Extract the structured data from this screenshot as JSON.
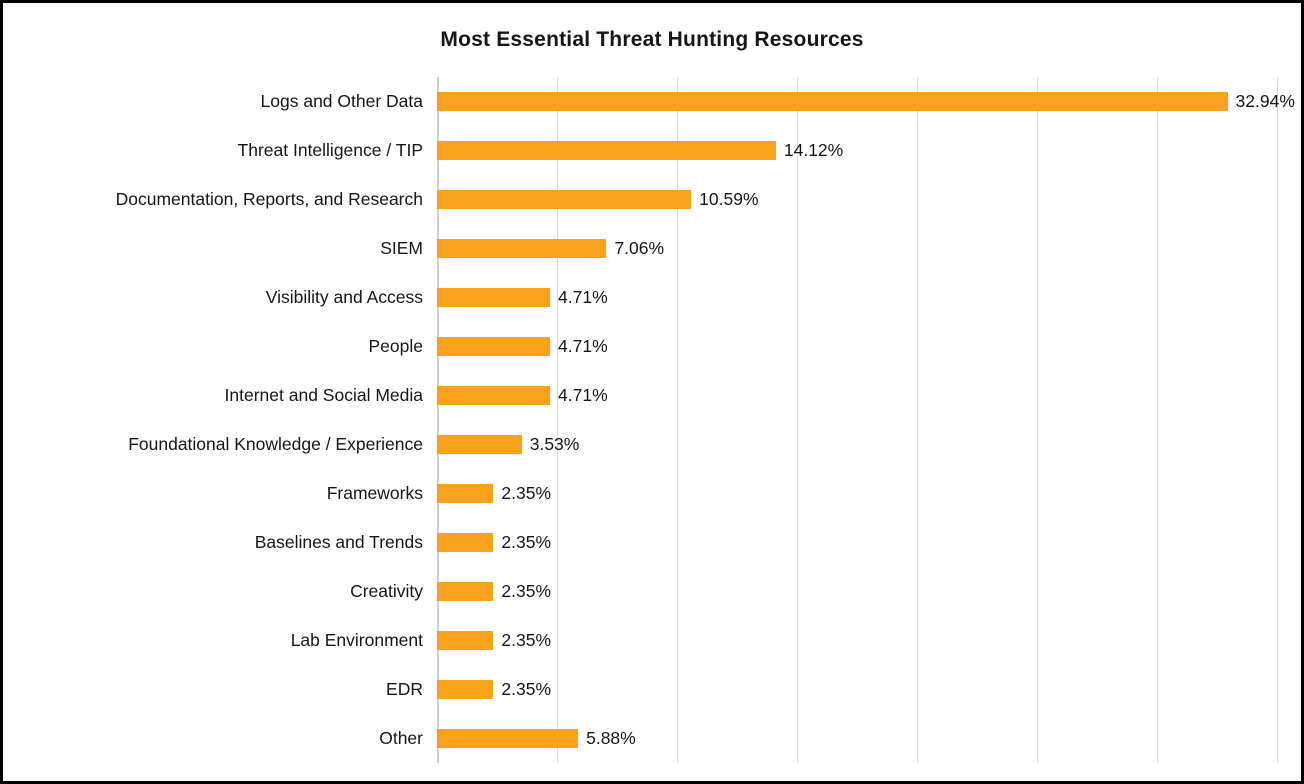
{
  "title": "Most Essential Threat Hunting Resources",
  "colors": {
    "bar": "#FAA21C",
    "gridline": "#D9D9D9",
    "axis_line": "#CFCDCD",
    "text": "#161616",
    "frame_border": "#000000"
  },
  "chart_data": {
    "type": "bar",
    "orientation": "horizontal",
    "title": "Most Essential Threat Hunting Resources",
    "categories": [
      "Logs and Other Data",
      "Threat Intelligence / TIP",
      "Documentation, Reports, and Research",
      "SIEM",
      "Visibility and Access",
      "People",
      "Internet and Social Media",
      "Foundational Knowledge / Experience",
      "Frameworks",
      "Baselines and Trends",
      "Creativity",
      "Lab Environment",
      "EDR",
      "Other"
    ],
    "values": [
      32.94,
      14.12,
      10.59,
      7.06,
      4.71,
      4.71,
      4.71,
      3.53,
      2.35,
      2.35,
      2.35,
      2.35,
      2.35,
      5.88
    ],
    "value_labels": [
      "32.94%",
      "14.12%",
      "10.59%",
      "7.06%",
      "4.71%",
      "4.71%",
      "4.71%",
      "3.53%",
      "2.35%",
      "2.35%",
      "2.35%",
      "2.35%",
      "2.35%",
      "5.88%"
    ],
    "xlabel": "",
    "ylabel": "",
    "xlim": [
      0,
      35
    ],
    "gridline_step": 5,
    "grid": true,
    "legend_position": "none",
    "x_tick_labels_visible": false
  }
}
